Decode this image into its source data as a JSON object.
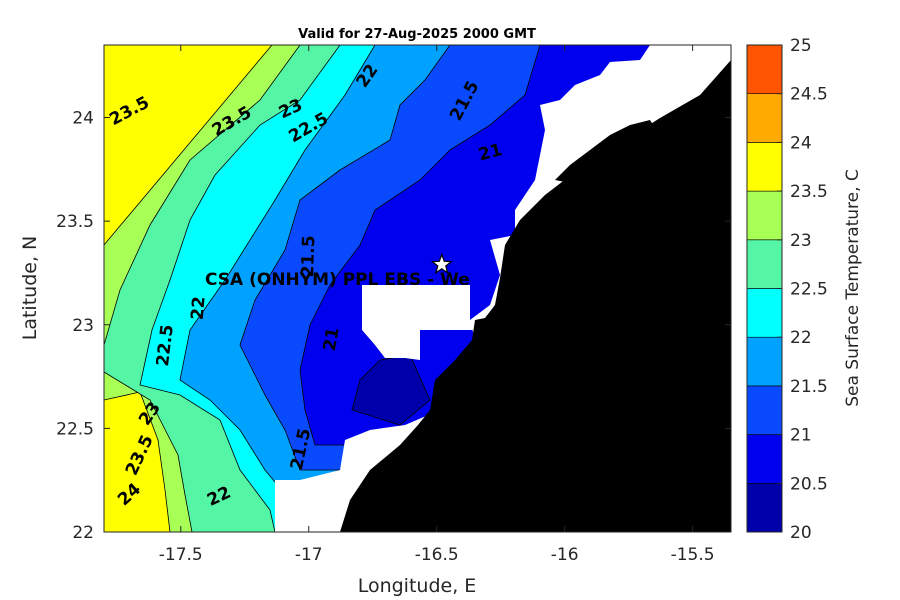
{
  "chart_data": {
    "type": "heatmap",
    "title": "Valid for 27-Aug-2025 2000 GMT",
    "xlabel": "Longitude, E",
    "ylabel": "Latitude, N",
    "xlim": [
      -17.8,
      -15.35
    ],
    "ylim": [
      22,
      24.35
    ],
    "x_ticks": [
      -17.5,
      -17,
      -16.5,
      -16,
      -15.5
    ],
    "x_tick_labels": [
      "-17.5",
      "-17",
      "-16.5",
      "-16",
      "-15.5"
    ],
    "y_ticks": [
      22,
      22.5,
      23,
      23.5,
      24
    ],
    "y_tick_labels": [
      "22",
      "22.5",
      "23",
      "23.5",
      "24"
    ],
    "colorbar": {
      "label": "Sea Surface Temperature, C",
      "levels": [
        20,
        20.5,
        21,
        21.5,
        22,
        22.5,
        23,
        23.5,
        24,
        24.5,
        25
      ],
      "level_labels": [
        "20",
        "20.5",
        "21",
        "21.5",
        "22",
        "22.5",
        "23",
        "23.5",
        "24",
        "24.5",
        "25"
      ],
      "colors": [
        "#0000aa",
        "#0000ee",
        "#0a4aff",
        "#00a2ff",
        "#00ffff",
        "#55f5a6",
        "#a8ff55",
        "#ffff00",
        "#ffaa00",
        "#ff5500"
      ]
    },
    "contour_labels": [
      {
        "text": "23.5",
        "lon": -17.7,
        "lat": 24.03,
        "rot": -28
      },
      {
        "text": "23.5",
        "lon": -17.3,
        "lat": 23.98,
        "rot": -30
      },
      {
        "text": "23",
        "lon": -17.07,
        "lat": 24.04,
        "rot": -25
      },
      {
        "text": "22.5",
        "lon": -17.0,
        "lat": 23.95,
        "rot": -30
      },
      {
        "text": "22",
        "lon": -16.77,
        "lat": 24.2,
        "rot": -55
      },
      {
        "text": "21.5",
        "lon": -16.39,
        "lat": 24.08,
        "rot": -62
      },
      {
        "text": "21",
        "lon": -16.29,
        "lat": 23.83,
        "rot": -15
      },
      {
        "text": "21.5",
        "lon": -17.0,
        "lat": 23.33,
        "rot": -88
      },
      {
        "text": "22",
        "lon": -17.43,
        "lat": 23.08,
        "rot": -85
      },
      {
        "text": "21",
        "lon": -16.91,
        "lat": 22.93,
        "rot": -80
      },
      {
        "text": "22.5",
        "lon": -17.56,
        "lat": 22.9,
        "rot": -83
      },
      {
        "text": "23",
        "lon": -17.62,
        "lat": 22.57,
        "rot": -55
      },
      {
        "text": "23.5",
        "lon": -17.66,
        "lat": 22.37,
        "rot": -65
      },
      {
        "text": "24",
        "lon": -17.7,
        "lat": 22.18,
        "rot": -42
      },
      {
        "text": "21.5",
        "lon": -17.03,
        "lat": 22.4,
        "rot": -78
      },
      {
        "text": "22",
        "lon": -17.35,
        "lat": 22.17,
        "rot": -25
      }
    ],
    "site": {
      "label": "CSA (ONHYM) PPL EBS  - We",
      "lon": -16.48,
      "lat": 23.29,
      "marker": "star-icon"
    },
    "land_color": "#000000",
    "nodata_color": "#ffffff"
  }
}
